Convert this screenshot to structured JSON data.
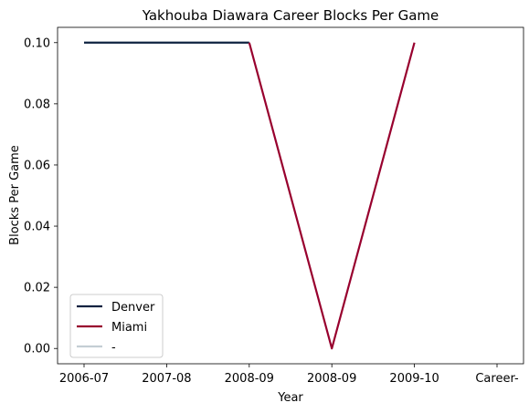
{
  "chart_data": {
    "type": "line",
    "title": "Yakhouba Diawara Career Blocks Per Game",
    "xlabel": "Year",
    "ylabel": "Blocks Per Game",
    "categories": [
      "2006-07",
      "2007-08",
      "2008-09",
      "2008-09",
      "2009-10",
      "Career-"
    ],
    "ylim": [
      -0.005,
      0.105
    ],
    "yticks": [
      0.0,
      0.02,
      0.04,
      0.06,
      0.08,
      0.1
    ],
    "ytick_labels": [
      "0.00",
      "0.02",
      "0.04",
      "0.06",
      "0.08",
      "0.10"
    ],
    "grid": false,
    "legend_position": "lower-left",
    "series": [
      {
        "name": "Denver",
        "color": "#0e2240",
        "x": [
          0,
          1,
          2
        ],
        "values": [
          0.1,
          0.1,
          0.1
        ]
      },
      {
        "name": "Miami",
        "color": "#98002e",
        "x": [
          2,
          3,
          4
        ],
        "values": [
          0.1,
          0.0,
          0.1
        ]
      },
      {
        "name": "-",
        "color": "#c4ced4",
        "x": [],
        "values": []
      }
    ]
  }
}
